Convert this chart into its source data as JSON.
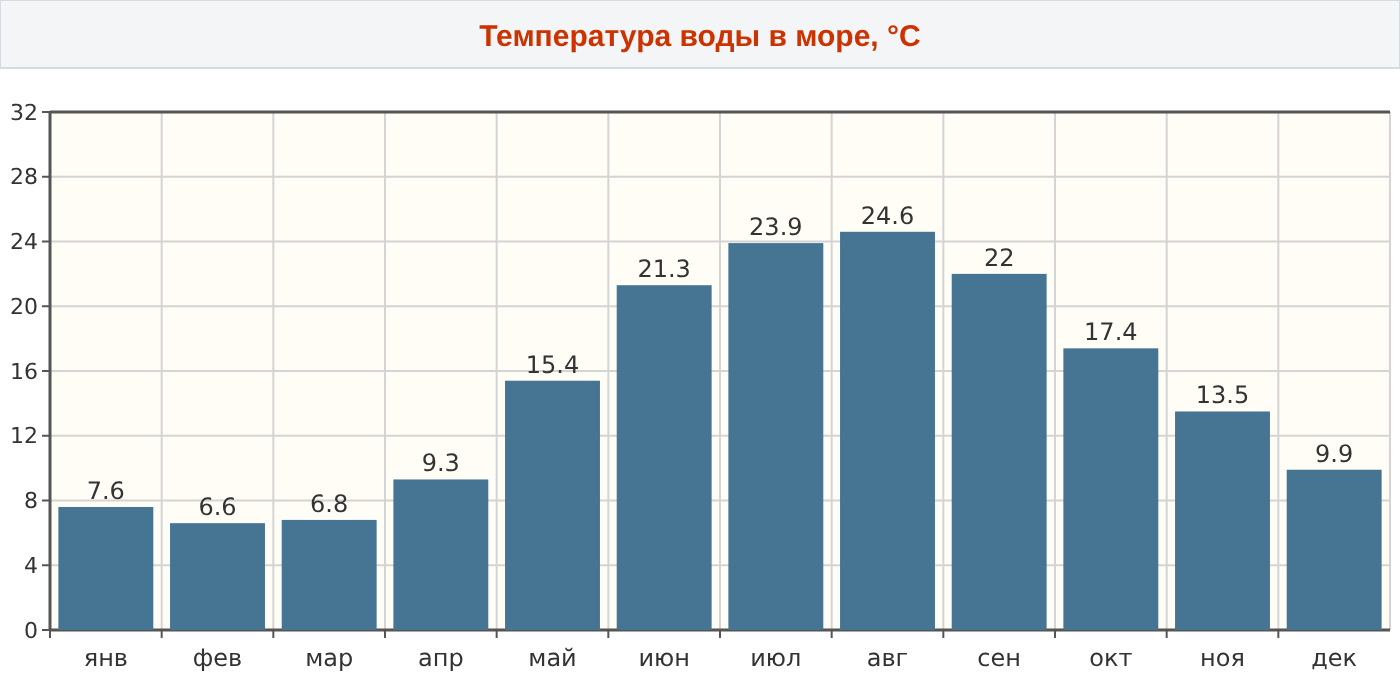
{
  "chart_data": {
    "type": "bar",
    "title": "Температура воды в море, °C",
    "categories": [
      "янв",
      "фев",
      "мар",
      "апр",
      "май",
      "июн",
      "июл",
      "авг",
      "сен",
      "окт",
      "ноя",
      "дек"
    ],
    "values": [
      7.6,
      6.6,
      6.8,
      9.3,
      15.4,
      21.3,
      23.9,
      24.6,
      22,
      17.4,
      13.5,
      9.9
    ],
    "color": "#457592",
    "ylim": [
      0,
      32
    ],
    "yticks": [
      0,
      4,
      8,
      12,
      16,
      20,
      24,
      28,
      32
    ],
    "grid": true,
    "data_labels": true
  }
}
